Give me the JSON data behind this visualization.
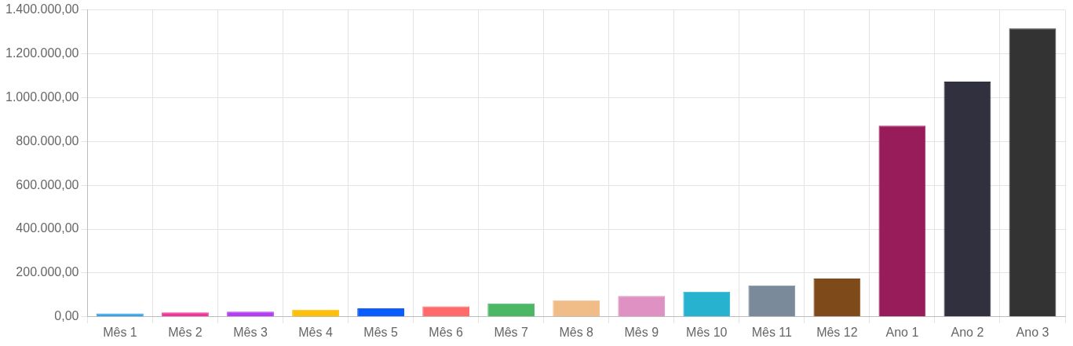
{
  "chart_data": {
    "type": "bar",
    "categories": [
      "Mês 1",
      "Mês 2",
      "Mês 3",
      "Mês 4",
      "Mês 5",
      "Mês 6",
      "Mês 7",
      "Mês 8",
      "Mês 9",
      "Mês 10",
      "Mês 11",
      "Mês 12",
      "Ano 1",
      "Ano 2",
      "Ano 3"
    ],
    "values": [
      15000,
      20000,
      23000,
      32000,
      39000,
      48000,
      61000,
      75000,
      95000,
      115000,
      143000,
      175000,
      872000,
      1073000,
      1315000
    ],
    "colors": [
      "#36a2eb",
      "#f0359a",
      "#b53cf5",
      "#fcc00b",
      "#0a5cff",
      "#ff6b6b",
      "#4cb866",
      "#f0bd88",
      "#de91c2",
      "#27b2cf",
      "#7b8a9a",
      "#7f4a1a",
      "#981b5a",
      "#31303f",
      "#333333"
    ],
    "ylim": [
      0,
      1400000
    ],
    "yticks": [
      {
        "value": 0,
        "label": "0,00"
      },
      {
        "value": 200000,
        "label": "200.000,00"
      },
      {
        "value": 400000,
        "label": "400.000,00"
      },
      {
        "value": 600000,
        "label": "600.000,00"
      },
      {
        "value": 800000,
        "label": "800.000,00"
      },
      {
        "value": 1000000,
        "label": "1.000.000,00"
      },
      {
        "value": 1200000,
        "label": "1.200.000,00"
      },
      {
        "value": 1400000,
        "label": "1.400.000,00"
      }
    ],
    "grid": true,
    "legend": false
  }
}
